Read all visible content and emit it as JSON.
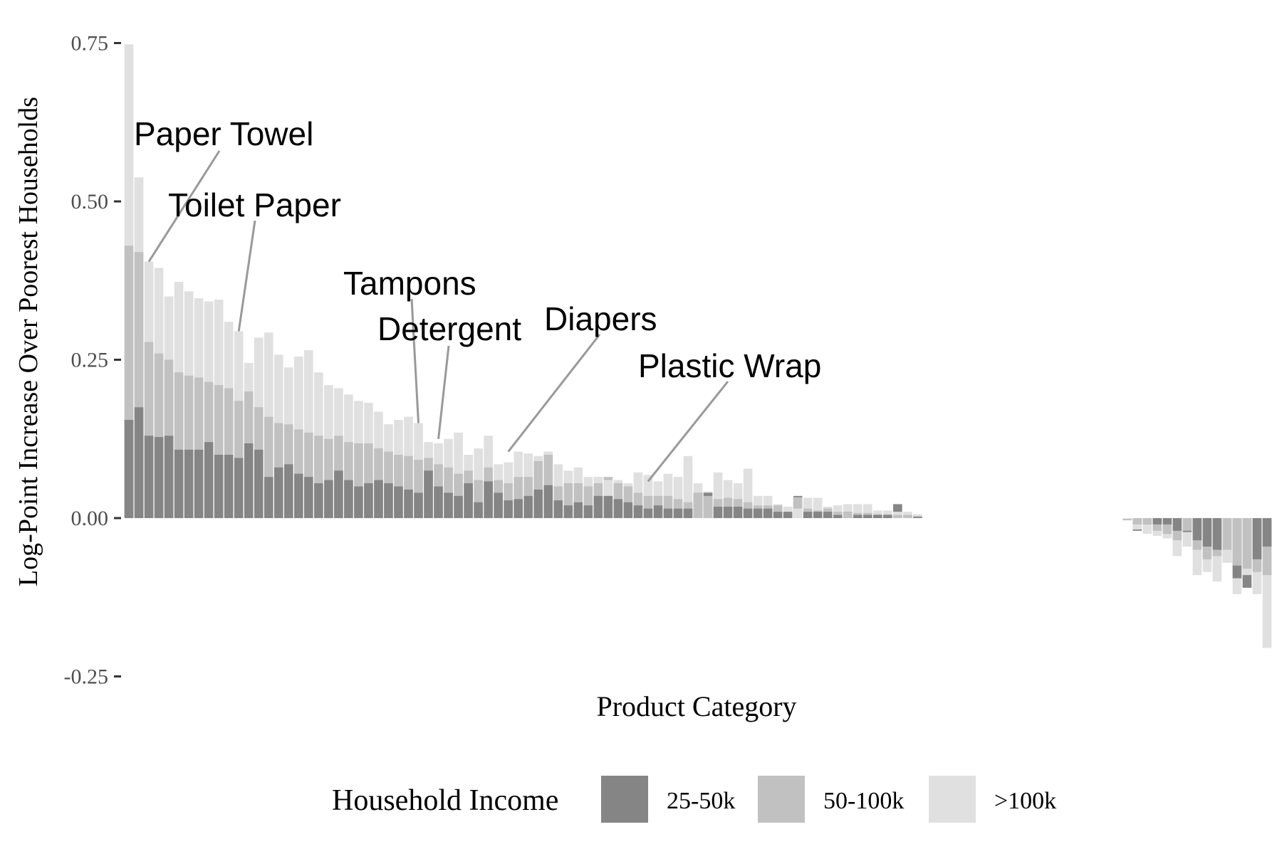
{
  "chart_data": {
    "type": "bar",
    "stacked": false,
    "overlay": true,
    "ylabel": "Log-Point Increase Over Poorest Households",
    "xlabel": "Product Category",
    "ylim": [
      -0.25,
      0.75
    ],
    "y_ticks": [
      "-0.25",
      "0.00",
      "0.25",
      "0.50",
      "0.75"
    ],
    "y_tick_values": [
      -0.25,
      0,
      0.25,
      0.5,
      0.75
    ],
    "grid": false,
    "legend_position": "bottom",
    "legend": {
      "title": "Household Income",
      "entries": [
        {
          "label": "25-50k",
          "color": "#858585"
        },
        {
          "label": "50-100k",
          "color": "#c1c1c1"
        },
        {
          "label": ">100k",
          "color": "#e0e0e0"
        }
      ]
    },
    "series": [
      {
        "name": "25-50k",
        "color": "#858585",
        "values": [
          0.155,
          0.175,
          0.13,
          0.128,
          0.13,
          0.108,
          0.108,
          0.108,
          0.12,
          0.1,
          0.1,
          0.095,
          0.118,
          0.108,
          0.065,
          0.08,
          0.085,
          0.07,
          0.065,
          0.055,
          0.06,
          0.075,
          0.06,
          0.05,
          0.055,
          0.06,
          0.055,
          0.05,
          0.045,
          0.04,
          0.075,
          0.05,
          0.04,
          0.035,
          0.055,
          0.025,
          0.058,
          0.04,
          0.028,
          0.03,
          0.035,
          0.045,
          0.052,
          0.028,
          0.02,
          0.025,
          0.02,
          0.035,
          0.035,
          0.03,
          0.025,
          0.02,
          0.015,
          0.02,
          0.015,
          0.015,
          0.015,
          0.04,
          0.04,
          0.018,
          0.018,
          0.018,
          0.015,
          0.015,
          0.015,
          0.01,
          0.01,
          0.035,
          0.01,
          0.01,
          0.01,
          0.005,
          0.01,
          0.005,
          0.005,
          0.005,
          0.005,
          0.022,
          0.005,
          0.002,
          0,
          0,
          0,
          0,
          0,
          0,
          0,
          0,
          0,
          0,
          -0.003,
          -0.02,
          -0.01,
          -0.01,
          -0.01,
          -0.02,
          -0.022,
          -0.035,
          -0.045,
          -0.05,
          -0.07,
          -0.095,
          -0.11,
          -0.065,
          -0.045
        ]
      },
      {
        "name": "50-100k",
        "color": "#c1c1c1",
        "values": [
          0.43,
          0.42,
          0.278,
          0.26,
          0.25,
          0.23,
          0.225,
          0.222,
          0.215,
          0.21,
          0.205,
          0.185,
          0.2,
          0.175,
          0.16,
          0.15,
          0.148,
          0.14,
          0.135,
          0.13,
          0.125,
          0.13,
          0.12,
          0.118,
          0.118,
          0.11,
          0.105,
          0.1,
          0.098,
          0.092,
          0.095,
          0.085,
          0.08,
          0.07,
          0.075,
          0.06,
          0.08,
          0.06,
          0.055,
          0.065,
          0.065,
          0.09,
          0.1,
          0.05,
          0.055,
          0.055,
          0.05,
          0.055,
          0.065,
          0.055,
          0.05,
          0.04,
          0.035,
          0.035,
          0.035,
          0.03,
          0.025,
          0.04,
          0.035,
          0.03,
          0.032,
          0.03,
          0.025,
          0.02,
          0.02,
          0.02,
          0.018,
          0.033,
          0.015,
          0.012,
          0.015,
          0.01,
          0.01,
          0.008,
          0.008,
          0.006,
          0.006,
          0.005,
          0.005,
          0.003,
          0,
          0,
          0,
          0,
          0,
          0,
          0,
          0,
          0,
          0,
          -0.002,
          -0.01,
          -0.01,
          -0.02,
          -0.025,
          -0.035,
          -0.02,
          -0.05,
          -0.065,
          -0.06,
          -0.05,
          -0.075,
          -0.08,
          -0.085,
          -0.09
        ]
      },
      {
        "name": ">100k",
        "color": "#e0e0e0",
        "values": [
          0.748,
          0.538,
          0.405,
          0.395,
          0.35,
          0.373,
          0.358,
          0.347,
          0.342,
          0.345,
          0.31,
          0.295,
          0.245,
          0.285,
          0.293,
          0.258,
          0.238,
          0.255,
          0.265,
          0.23,
          0.21,
          0.205,
          0.195,
          0.185,
          0.182,
          0.168,
          0.148,
          0.155,
          0.16,
          0.15,
          0.12,
          0.118,
          0.125,
          0.135,
          0.1,
          0.11,
          0.13,
          0.085,
          0.088,
          0.105,
          0.102,
          0.098,
          0.105,
          0.085,
          0.075,
          0.08,
          0.065,
          0.065,
          0.06,
          0.06,
          0.055,
          0.072,
          0.068,
          0.058,
          0.07,
          0.065,
          0.098,
          0.055,
          0.042,
          0.072,
          0.06,
          0.055,
          0.078,
          0.035,
          0.035,
          0.022,
          0.018,
          0.015,
          0.032,
          0.032,
          0.018,
          0.02,
          0.022,
          0.022,
          0.022,
          0.012,
          0.012,
          0.01,
          0.01,
          0.006,
          0,
          0,
          0,
          0,
          0,
          0,
          0,
          0,
          0,
          0,
          -0.002,
          -0.018,
          -0.025,
          -0.028,
          -0.032,
          -0.06,
          -0.045,
          -0.09,
          -0.085,
          -0.1,
          -0.07,
          -0.12,
          -0.09,
          -0.12,
          -0.205
        ]
      }
    ],
    "annotations": [
      {
        "label": "Paper Towel",
        "bar_index": 2,
        "y": 0.405
      },
      {
        "label": "Toilet Paper",
        "bar_index": 11,
        "y": 0.295
      },
      {
        "label": "Tampons",
        "bar_index": 29,
        "y": 0.15
      },
      {
        "label": "Detergent",
        "bar_index": 31,
        "y": 0.125
      },
      {
        "label": "Diapers",
        "bar_index": 38,
        "y": 0.105
      },
      {
        "label": "Plastic Wrap",
        "bar_index": 52,
        "y": 0.058
      }
    ]
  }
}
